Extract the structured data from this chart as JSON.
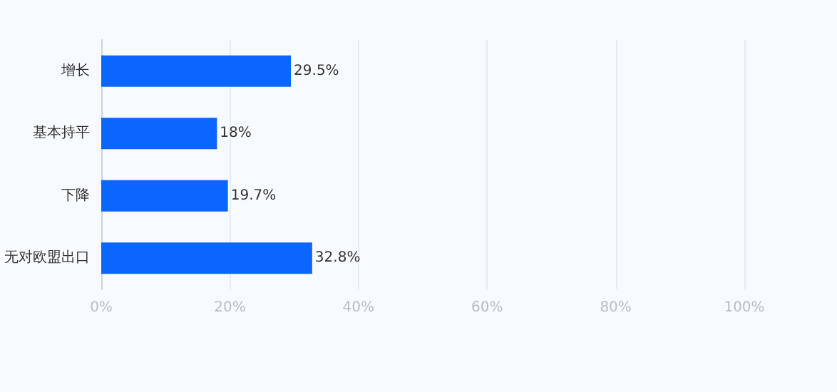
{
  "chart_data": {
    "type": "bar",
    "orientation": "horizontal",
    "categories": [
      "增长",
      "基本持平",
      "下降",
      "无对欧盟出口"
    ],
    "values": [
      29.5,
      18,
      19.7,
      32.8
    ],
    "color": "#0a66ff",
    "value_labels": [
      "29.5%",
      "18%",
      "19.7%",
      "32.8%"
    ],
    "xlim": [
      0,
      100
    ],
    "xticks": [
      {
        "value": 0,
        "label": "0%"
      },
      {
        "value": 20,
        "label": "20%"
      },
      {
        "value": 40,
        "label": "40%"
      },
      {
        "value": 60,
        "label": "60%"
      },
      {
        "value": 80,
        "label": "80%"
      },
      {
        "value": 100,
        "label": "100%"
      }
    ],
    "grid": "x"
  }
}
